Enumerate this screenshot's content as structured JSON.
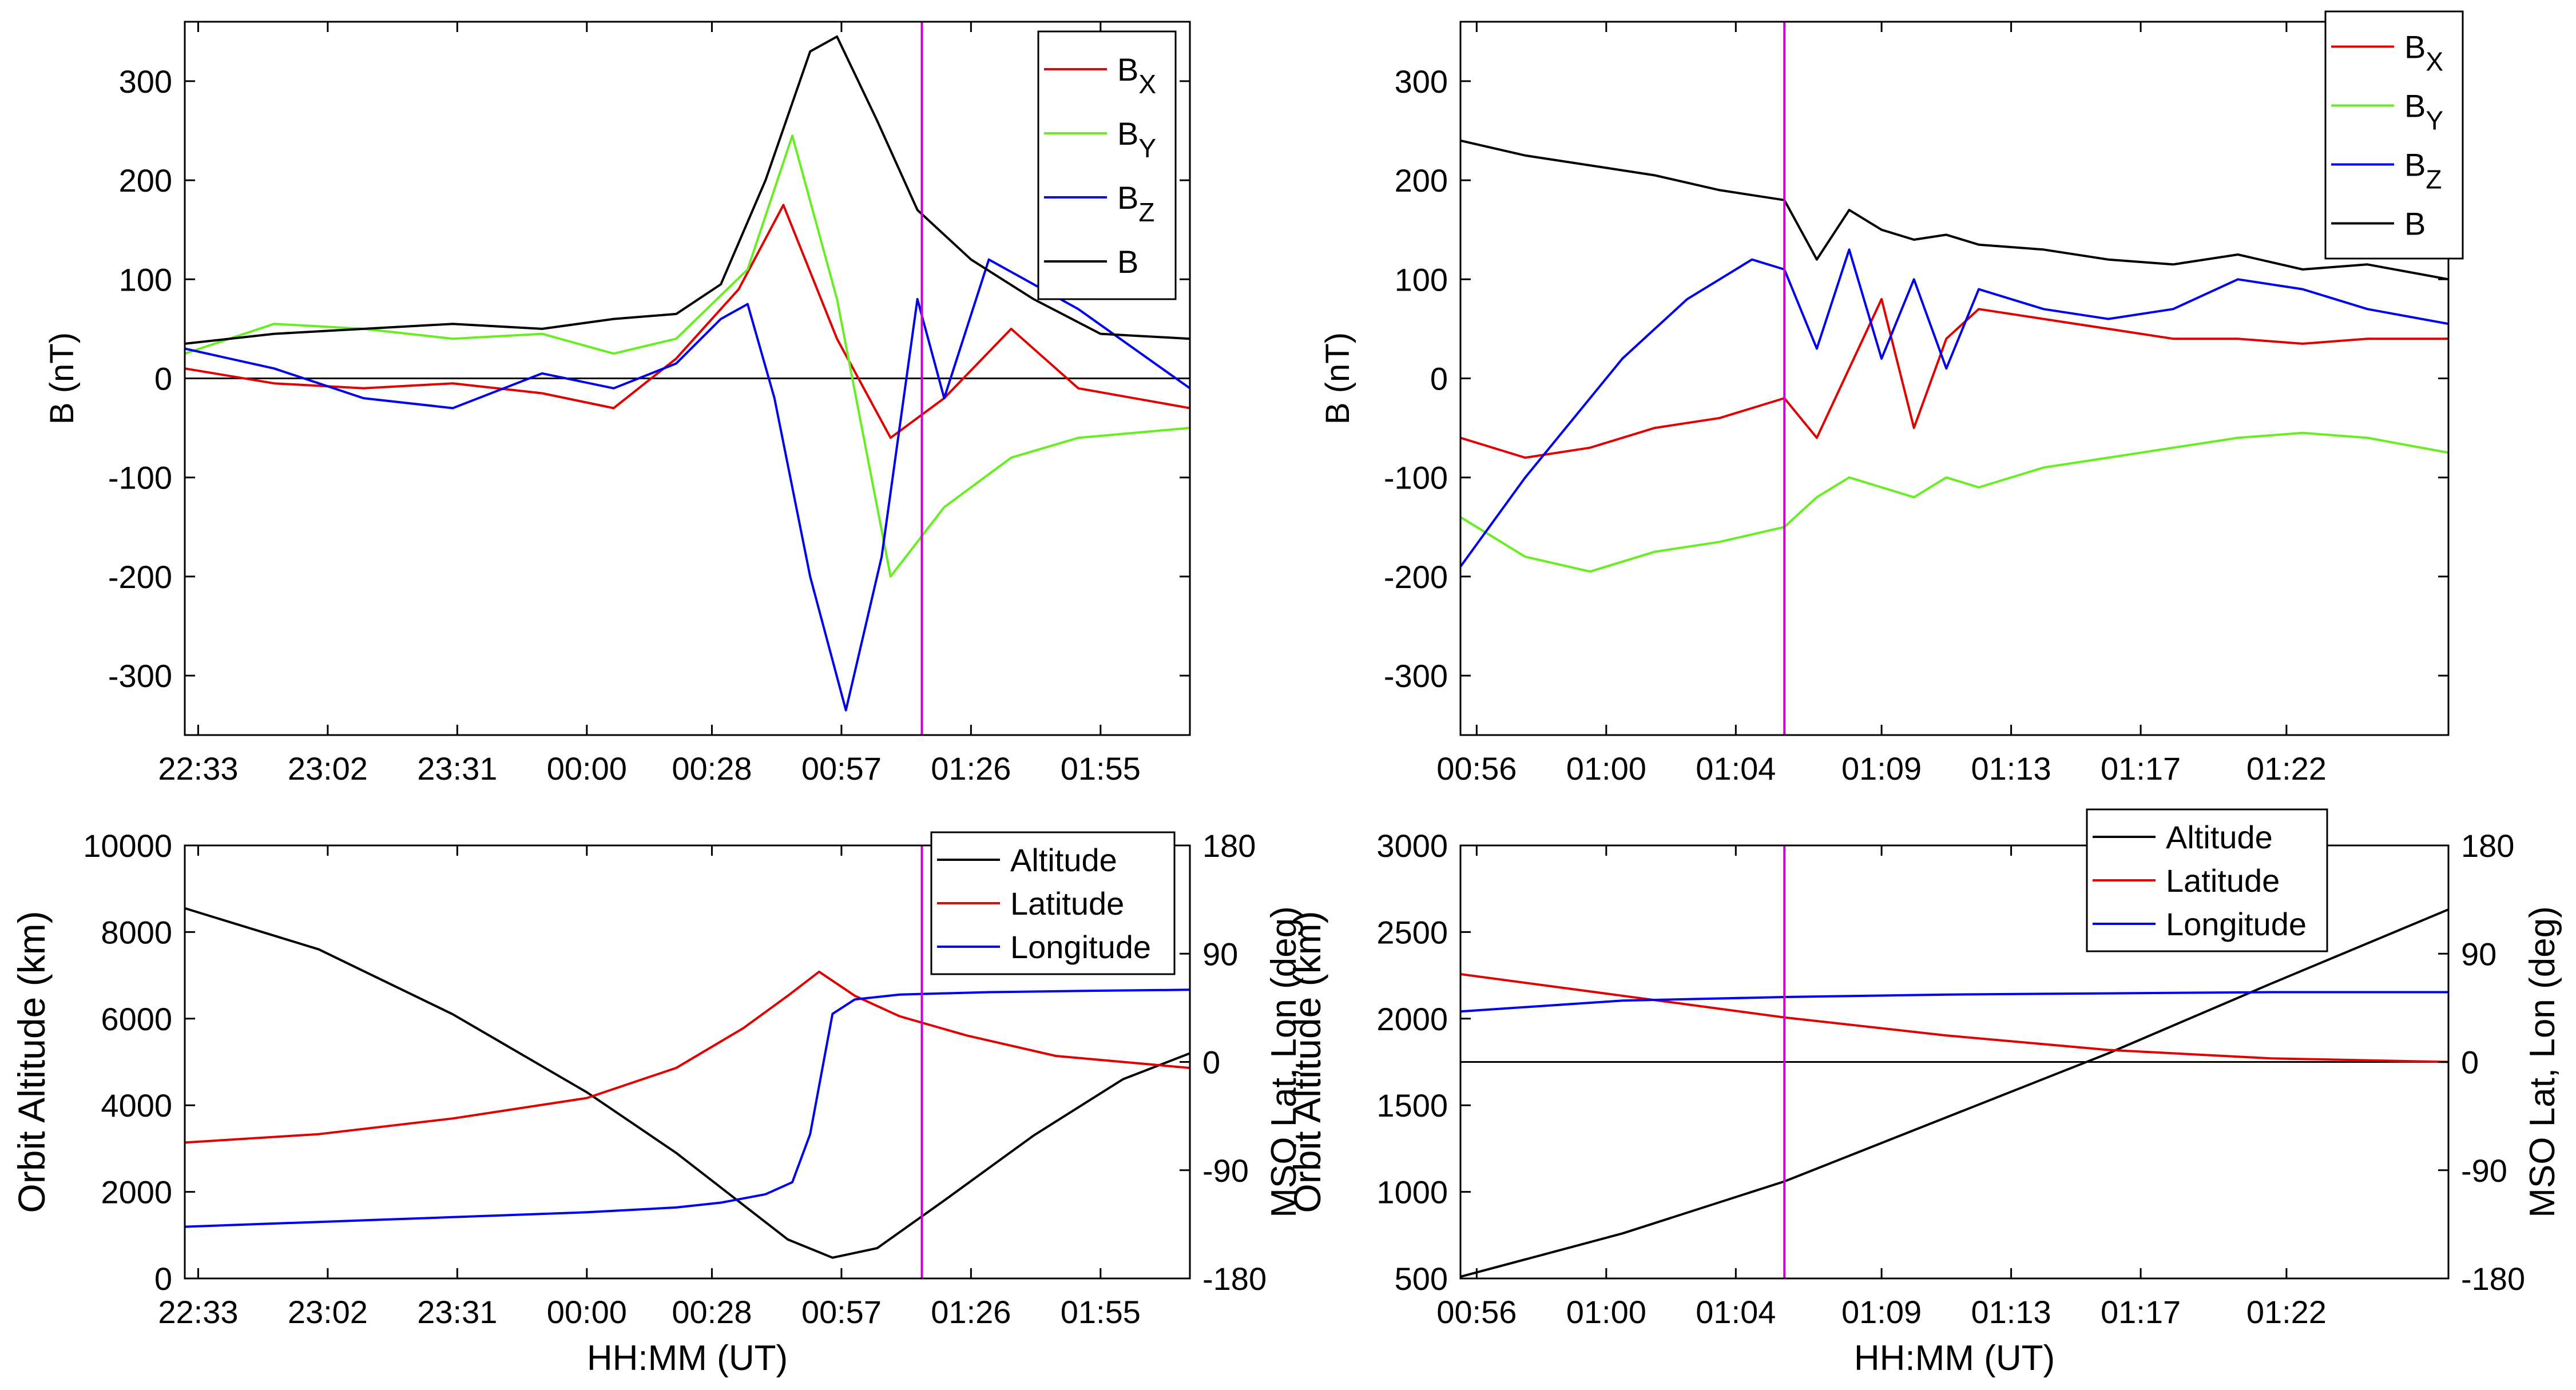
{
  "chart_data": [
    {
      "id": "p1",
      "type": "line",
      "ylabel": "B (nT)",
      "xlabel": "",
      "xlim": [
        0,
        225
      ],
      "ylim": [
        -360,
        360
      ],
      "x_ticks": [
        {
          "label": "22:33",
          "value": 3
        },
        {
          "label": "23:02",
          "value": 32
        },
        {
          "label": "23:31",
          "value": 61
        },
        {
          "label": "00:00",
          "value": 90
        },
        {
          "label": "00:28",
          "value": 118
        },
        {
          "label": "00:57",
          "value": 147
        },
        {
          "label": "01:26",
          "value": 176
        },
        {
          "label": "01:55",
          "value": 205
        }
      ],
      "y_ticks": [
        {
          "label": "300",
          "value": 300
        },
        {
          "label": "200",
          "value": 200
        },
        {
          "label": "100",
          "value": 100
        },
        {
          "label": "0",
          "value": 0
        },
        {
          "label": "-100",
          "value": -100
        },
        {
          "label": "-200",
          "value": -200
        },
        {
          "label": "-300",
          "value": -300
        }
      ],
      "zero_line": 0,
      "marker_x": 165,
      "legend_position": "top-right",
      "series": [
        {
          "name": "B",
          "sub": "X",
          "color": "#e00000",
          "x": [
            0,
            20,
            40,
            60,
            80,
            96,
            110,
            124,
            134,
            146,
            158,
            170,
            185,
            200,
            225
          ],
          "y": [
            10,
            -5,
            -10,
            -5,
            -15,
            -30,
            20,
            90,
            175,
            40,
            -60,
            -20,
            50,
            -10,
            -30
          ]
        },
        {
          "name": "B",
          "sub": "Y",
          "color": "#66ee22",
          "x": [
            0,
            20,
            40,
            60,
            80,
            96,
            110,
            126,
            136,
            146,
            158,
            170,
            185,
            200,
            225
          ],
          "y": [
            25,
            55,
            50,
            40,
            45,
            25,
            40,
            110,
            245,
            80,
            -200,
            -130,
            -80,
            -60,
            -50
          ]
        },
        {
          "name": "B",
          "sub": "Z",
          "color": "#0000ee",
          "x": [
            0,
            20,
            40,
            60,
            80,
            96,
            110,
            120,
            126,
            132,
            140,
            148,
            156,
            164,
            170,
            180,
            200,
            225
          ],
          "y": [
            30,
            10,
            -20,
            -30,
            5,
            -10,
            15,
            60,
            75,
            -20,
            -200,
            -335,
            -180,
            80,
            -20,
            120,
            70,
            -10
          ]
        },
        {
          "name": "B",
          "sub": "",
          "color": "#000000",
          "x": [
            0,
            20,
            40,
            60,
            80,
            96,
            110,
            120,
            130,
            140,
            146,
            155,
            164,
            176,
            190,
            205,
            225
          ],
          "y": [
            35,
            45,
            50,
            55,
            50,
            60,
            65,
            95,
            200,
            330,
            345,
            260,
            170,
            120,
            80,
            45,
            40
          ]
        }
      ]
    },
    {
      "id": "p2",
      "type": "line",
      "ylabel": "B (nT)",
      "xlabel": "",
      "xlim": [
        0,
        30.5
      ],
      "ylim": [
        -360,
        360
      ],
      "x_ticks": [
        {
          "label": "00:56",
          "value": 0.5
        },
        {
          "label": "01:00",
          "value": 4.5
        },
        {
          "label": "01:04",
          "value": 8.5
        },
        {
          "label": "01:09",
          "value": 13
        },
        {
          "label": "01:13",
          "value": 17
        },
        {
          "label": "01:17",
          "value": 21
        },
        {
          "label": "01:22",
          "value": 25.5
        }
      ],
      "y_ticks": [
        {
          "label": "300",
          "value": 300
        },
        {
          "label": "200",
          "value": 200
        },
        {
          "label": "100",
          "value": 100
        },
        {
          "label": "0",
          "value": 0
        },
        {
          "label": "-100",
          "value": -100
        },
        {
          "label": "-200",
          "value": -200
        },
        {
          "label": "-300",
          "value": -300
        }
      ],
      "zero_line": null,
      "marker_x": 10,
      "legend_position": "top-right",
      "series": [
        {
          "name": "B",
          "sub": "X",
          "color": "#e00000",
          "x": [
            0,
            2,
            4,
            6,
            8,
            10,
            11,
            12,
            13,
            14,
            15,
            16,
            18,
            20,
            22,
            24,
            26,
            28,
            30.5
          ],
          "y": [
            -60,
            -80,
            -70,
            -50,
            -40,
            -20,
            -60,
            10,
            80,
            -50,
            40,
            70,
            60,
            50,
            40,
            40,
            35,
            40,
            40
          ]
        },
        {
          "name": "B",
          "sub": "Y",
          "color": "#66ee22",
          "x": [
            0,
            2,
            4,
            6,
            8,
            10,
            11,
            12,
            13,
            14,
            15,
            16,
            18,
            20,
            22,
            24,
            26,
            28,
            30.5
          ],
          "y": [
            -140,
            -180,
            -195,
            -175,
            -165,
            -150,
            -120,
            -100,
            -110,
            -120,
            -100,
            -110,
            -90,
            -80,
            -70,
            -60,
            -55,
            -60,
            -75
          ]
        },
        {
          "name": "B",
          "sub": "Z",
          "color": "#0000ee",
          "x": [
            0,
            2,
            3,
            4,
            5,
            6,
            7,
            8,
            9,
            10,
            11,
            12,
            13,
            14,
            15,
            16,
            17,
            18,
            20,
            22,
            24,
            26,
            28,
            30.5
          ],
          "y": [
            -190,
            -100,
            -60,
            -20,
            20,
            50,
            80,
            100,
            120,
            110,
            30,
            130,
            20,
            100,
            10,
            90,
            80,
            70,
            60,
            70,
            100,
            90,
            70,
            55
          ]
        },
        {
          "name": "B",
          "sub": "",
          "color": "#000000",
          "x": [
            0,
            2,
            4,
            6,
            8,
            10,
            11,
            12,
            13,
            14,
            15,
            16,
            18,
            20,
            22,
            24,
            26,
            28,
            30.5
          ],
          "y": [
            240,
            225,
            215,
            205,
            190,
            180,
            120,
            170,
            150,
            140,
            145,
            135,
            130,
            120,
            115,
            125,
            110,
            115,
            100
          ]
        }
      ]
    },
    {
      "id": "p3",
      "type": "line",
      "xlabel": "HH:MM (UT)",
      "ylabel": "Orbit Altitude (km)",
      "y2label": "MSO Lat, Lon (deg)",
      "xlim": [
        0,
        225
      ],
      "ylim": [
        0,
        10000
      ],
      "y2lim": [
        -180,
        180
      ],
      "x_ticks": [
        {
          "label": "22:33",
          "value": 3
        },
        {
          "label": "23:02",
          "value": 32
        },
        {
          "label": "23:31",
          "value": 61
        },
        {
          "label": "00:00",
          "value": 90
        },
        {
          "label": "00:28",
          "value": 118
        },
        {
          "label": "00:57",
          "value": 147
        },
        {
          "label": "01:26",
          "value": 176
        },
        {
          "label": "01:55",
          "value": 205
        }
      ],
      "y_ticks": [
        {
          "label": "10000",
          "value": 10000
        },
        {
          "label": "8000",
          "value": 8000
        },
        {
          "label": "6000",
          "value": 6000
        },
        {
          "label": "4000",
          "value": 4000
        },
        {
          "label": "2000",
          "value": 2000
        },
        {
          "label": "0",
          "value": 0
        }
      ],
      "y2_ticks": [
        {
          "label": "180",
          "value": 180
        },
        {
          "label": "90",
          "value": 90
        },
        {
          "label": "0",
          "value": 0
        },
        {
          "label": "-90",
          "value": -90
        },
        {
          "label": "-180",
          "value": -180
        }
      ],
      "marker_x": 165,
      "legend_position": "top-right",
      "series": [
        {
          "name": "Altitude",
          "axis": "left",
          "color": "#000000",
          "x": [
            0,
            30,
            60,
            90,
            110,
            125,
            135,
            145,
            155,
            170,
            190,
            210,
            225
          ],
          "y": [
            8550,
            7600,
            6100,
            4300,
            2900,
            1700,
            900,
            480,
            700,
            1800,
            3300,
            4600,
            5200
          ]
        },
        {
          "name": "Latitude",
          "axis": "right",
          "color": "#e00000",
          "x": [
            0,
            30,
            60,
            90,
            110,
            125,
            135,
            142,
            150,
            160,
            175,
            195,
            225
          ],
          "y": [
            -67,
            -60,
            -47,
            -30,
            -5,
            28,
            55,
            75,
            55,
            38,
            22,
            5,
            -5
          ]
        },
        {
          "name": "Longitude",
          "axis": "right",
          "color": "#0000ee",
          "x": [
            0,
            30,
            60,
            90,
            110,
            120,
            130,
            136,
            140,
            145,
            150,
            160,
            180,
            200,
            225
          ],
          "y": [
            -137,
            -133,
            -129,
            -125,
            -121,
            -117,
            -110,
            -100,
            -60,
            40,
            52,
            56,
            58,
            59,
            60
          ]
        }
      ]
    },
    {
      "id": "p4",
      "type": "line",
      "xlabel": "HH:MM (UT)",
      "ylabel": "Orbit Altitude (km)",
      "y2label": "MSO Lat, Lon (deg)",
      "xlim": [
        0,
        30.5
      ],
      "ylim": [
        500,
        3000
      ],
      "y2lim": [
        -180,
        180
      ],
      "x_ticks": [
        {
          "label": "00:56",
          "value": 0.5
        },
        {
          "label": "01:00",
          "value": 4.5
        },
        {
          "label": "01:04",
          "value": 8.5
        },
        {
          "label": "01:09",
          "value": 13
        },
        {
          "label": "01:13",
          "value": 17
        },
        {
          "label": "01:17",
          "value": 21
        },
        {
          "label": "01:22",
          "value": 25.5
        }
      ],
      "y_ticks": [
        {
          "label": "3000",
          "value": 3000
        },
        {
          "label": "2500",
          "value": 2500
        },
        {
          "label": "2000",
          "value": 2000
        },
        {
          "label": "1500",
          "value": 1500
        },
        {
          "label": "1000",
          "value": 1000
        },
        {
          "label": "500",
          "value": 500
        }
      ],
      "y2_ticks": [
        {
          "label": "180",
          "value": 180
        },
        {
          "label": "90",
          "value": 90
        },
        {
          "label": "0",
          "value": 0
        },
        {
          "label": "-90",
          "value": -90
        },
        {
          "label": "-180",
          "value": -180
        }
      ],
      "marker_x": 10,
      "legend_position": "top",
      "series": [
        {
          "name": "Altitude",
          "axis": "left",
          "color": "#000000",
          "x": [
            0,
            5,
            10,
            15,
            20,
            25,
            30.5
          ],
          "y": [
            510,
            760,
            1060,
            1430,
            1800,
            2200,
            2630
          ]
        },
        {
          "name": "Latitude",
          "axis": "right",
          "color": "#e00000",
          "x": [
            0,
            5,
            10,
            15,
            20,
            25,
            30.5
          ],
          "y": [
            73,
            55,
            37,
            22,
            10,
            3,
            0
          ]
        },
        {
          "name": "Longitude",
          "axis": "right",
          "color": "#0000ee",
          "x": [
            0,
            5,
            10,
            15,
            20,
            25,
            30.5
          ],
          "y": [
            42,
            51,
            54,
            56,
            57,
            58,
            58
          ]
        }
      ],
      "extra_lines": [
        {
          "name": "",
          "axis": "right",
          "color": "#000000",
          "y": 0
        }
      ]
    }
  ]
}
